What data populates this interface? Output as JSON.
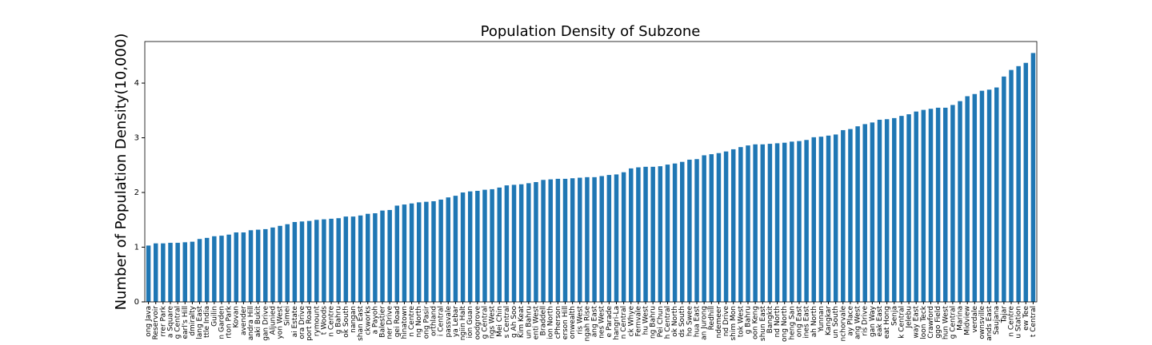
{
  "chart_data": {
    "type": "bar",
    "title": "Population Density of Subzone",
    "ylabel": "Number of Population Density(10,000)",
    "categories": [
      "ong Java",
      "Reservoir",
      "rrer Park",
      "a Square",
      "g Central",
      "earl's Hill",
      "dmiralty",
      "lang East",
      "ttle India",
      "Guilin",
      "n Garden",
      "rton Park",
      "Kovan",
      "avender",
      "andra Hill",
      "aki Bukit",
      "gan Drive",
      "Aljunied",
      "yon West",
      "Simei",
      "ai Estate",
      "ora Drive",
      "port Road",
      "rymount",
      "t Woods",
      "n Centre",
      "g Bahru",
      "ok South",
      "nangan",
      "shan East",
      "ckworks",
      "a Payoh",
      "Balestier",
      "ner Drive",
      "gei Road",
      "hinatown",
      "n Centre",
      "ng North",
      "ong Pasir",
      "orthland",
      "i Central",
      "passvale",
      "ya Lebar",
      "ngiin Halt",
      "ion Guan",
      "oodgrove",
      "g Central",
      "ngs West",
      "Mei Chin",
      "s Central",
      "g Ah Soo",
      "Kim Keat",
      "un Bahru",
      "enti West",
      "Braddell",
      "ion North",
      "cPherson",
      "erson Hill",
      "onwealth",
      "ris West",
      "ngah Rise",
      "ang East",
      "nes West",
      "e Parade",
      "hangri-La",
      "n Central",
      "ck Whye",
      "Fernvale",
      "hu West",
      "ng Bahru",
      "Pei Chun",
      "h Central",
      "ok North",
      "ds South",
      "ho Swee",
      "hua East",
      "an Jurong",
      "Redhill",
      "ndemeer",
      "nd Drive",
      "shim Mon",
      "tok West",
      "g Bahru",
      "oon Keng",
      "shun East",
      "Bangkit",
      "nd North",
      "ong North",
      "heng San",
      "ong East",
      "ines East",
      "ah North",
      "Yunnan",
      "Kangkar",
      "un South",
      "nchorvale",
      "ay Place",
      "ang West",
      "ris Drive",
      "gan Way",
      "eak East",
      "eat Hong",
      "Senja",
      "k Central",
      "Jelebu",
      "way East",
      "loon Teck",
      "Crawford",
      "ggo Field",
      "hun West",
      "g Central",
      "Marina",
      "Midview",
      "verdale",
      "ownsville",
      "ands East",
      "Saujana",
      "Tajar",
      "n Centre",
      "u Station",
      "ew Tee",
      "t Central"
    ],
    "values": [
      1.03,
      1.07,
      1.07,
      1.08,
      1.08,
      1.09,
      1.1,
      1.15,
      1.17,
      1.2,
      1.21,
      1.23,
      1.27,
      1.27,
      1.31,
      1.32,
      1.33,
      1.36,
      1.39,
      1.42,
      1.46,
      1.47,
      1.48,
      1.5,
      1.51,
      1.52,
      1.53,
      1.56,
      1.56,
      1.58,
      1.61,
      1.62,
      1.67,
      1.68,
      1.76,
      1.78,
      1.8,
      1.82,
      1.83,
      1.84,
      1.87,
      1.91,
      1.94,
      2.0,
      2.02,
      2.03,
      2.05,
      2.06,
      2.09,
      2.13,
      2.14,
      2.15,
      2.17,
      2.19,
      2.23,
      2.24,
      2.25,
      2.25,
      2.26,
      2.27,
      2.28,
      2.28,
      2.3,
      2.32,
      2.33,
      2.37,
      2.44,
      2.46,
      2.47,
      2.47,
      2.48,
      2.51,
      2.53,
      2.56,
      2.6,
      2.61,
      2.68,
      2.7,
      2.72,
      2.75,
      2.79,
      2.83,
      2.86,
      2.88,
      2.88,
      2.89,
      2.9,
      2.91,
      2.93,
      2.94,
      2.96,
      3.01,
      3.02,
      3.04,
      3.06,
      3.14,
      3.16,
      3.21,
      3.25,
      3.28,
      3.33,
      3.34,
      3.36,
      3.4,
      3.43,
      3.48,
      3.51,
      3.53,
      3.55,
      3.55,
      3.6,
      3.67,
      3.76,
      3.8,
      3.86,
      3.88,
      3.92,
      4.12,
      4.24,
      4.31,
      4.37,
      4.55
    ],
    "color": "#1f77b4",
    "ylim": [
      0,
      4.76
    ],
    "yticks": [
      0,
      1,
      2,
      3,
      4
    ]
  }
}
